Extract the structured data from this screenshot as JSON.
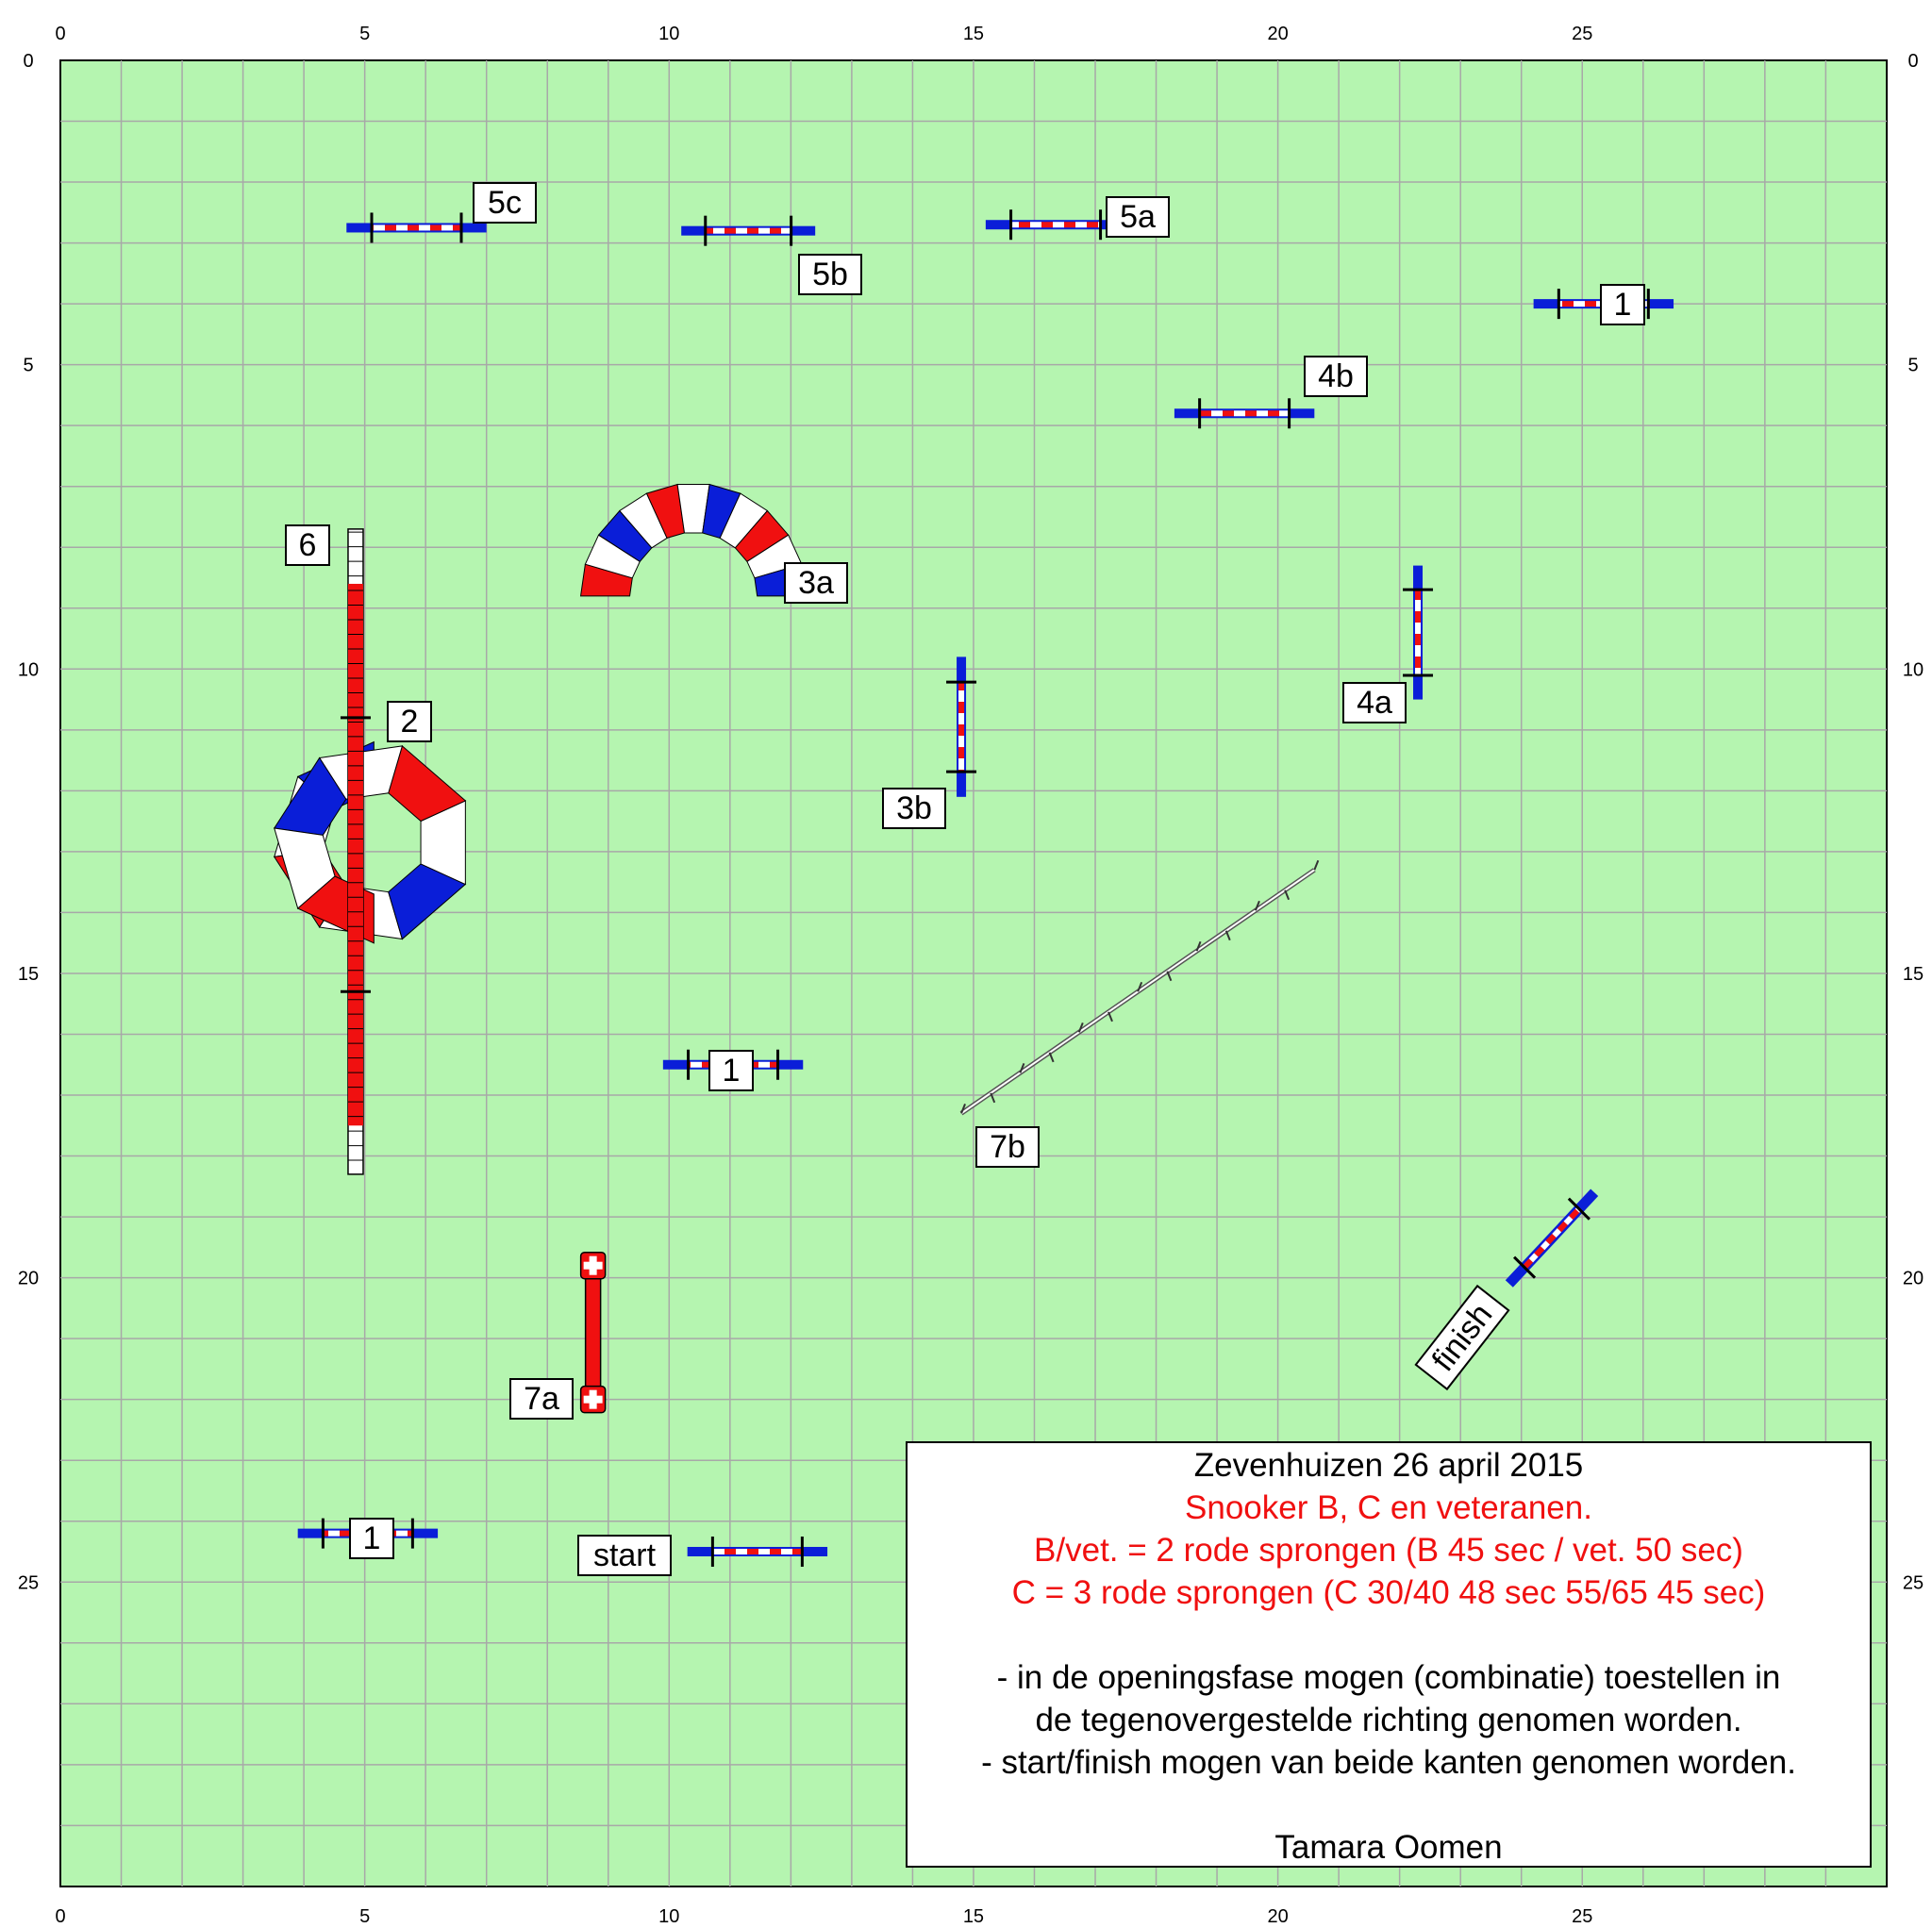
{
  "grid": {
    "cols": 30,
    "rows": 30,
    "x_ticks": [
      0,
      5,
      10,
      15,
      20,
      25
    ],
    "y_ticks": [
      0,
      5,
      10,
      15,
      20,
      25
    ]
  },
  "colors": {
    "field": "#b5f5b0",
    "grid_line": "#a8a8a8",
    "blue": "#0a1ed8",
    "red": "#f01010",
    "white": "#ffffff",
    "black": "#000000"
  },
  "labels": {
    "l1_top": "1",
    "l1_mid": "1",
    "l1_bottom": "1",
    "l2": "2",
    "l3a": "3a",
    "l3b": "3b",
    "l4a": "4a",
    "l4b": "4b",
    "l5a": "5a",
    "l5b": "5b",
    "l5c": "5c",
    "l6": "6",
    "l7a": "7a",
    "l7b": "7b",
    "start": "start",
    "finish": "finish"
  },
  "info": {
    "title": "Zevenhuizen 26 april 2015",
    "subtitle": "Snooker B, C en veteranen.",
    "rule_b": "B/vet. = 2 rode sprongen (B 45 sec / vet. 50 sec)",
    "rule_c": "C = 3 rode sprongen (C 30/40 48 sec 55/65 45 sec)",
    "note1a": "- in de openingsfase mogen (combinatie) toestellen in",
    "note1b": "de tegenovergestelde richting genomen worden.",
    "note2": "- start/finish mogen van beide kanten genomen worden.",
    "author": "Tamara Oomen"
  }
}
